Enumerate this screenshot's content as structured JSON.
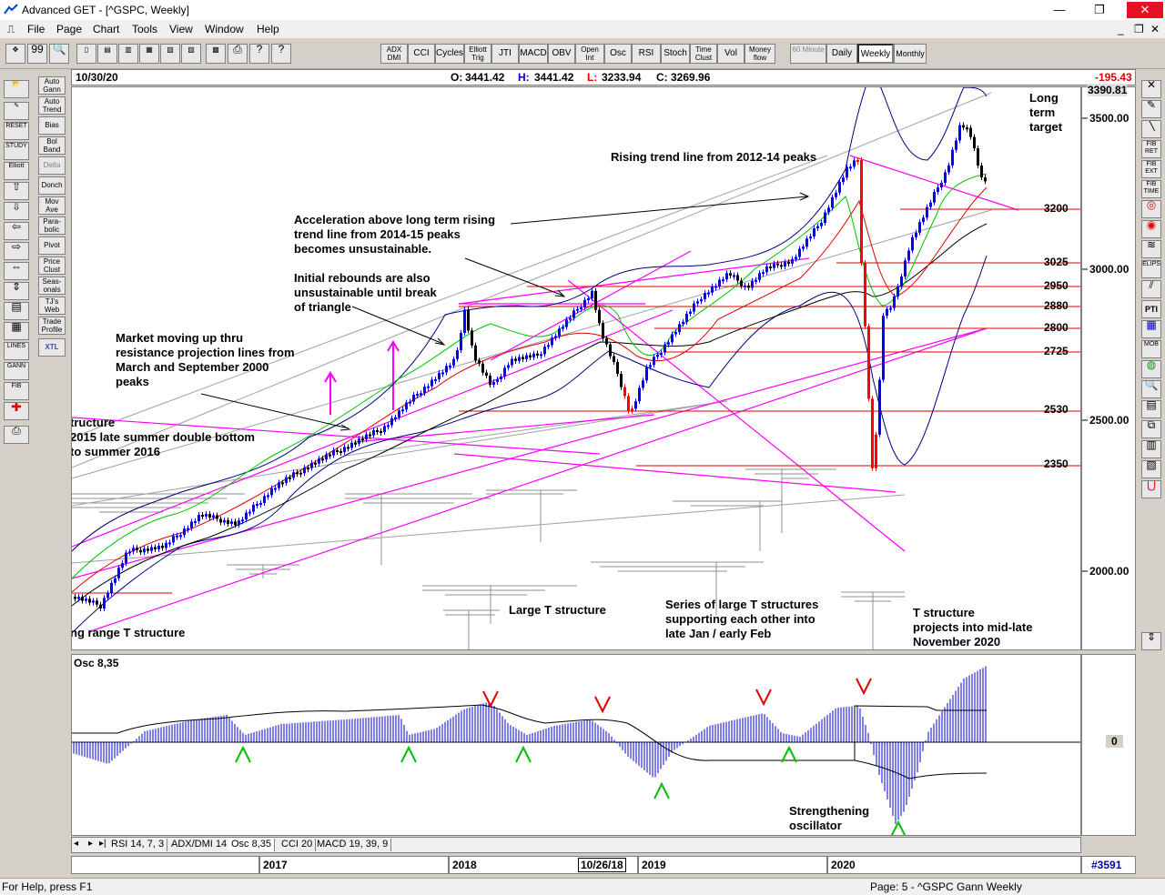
{
  "window": {
    "title": "Advanced GET - [^GSPC, Weekly]",
    "minimize": "—",
    "restore": "❐",
    "close": "✕"
  },
  "menu": [
    "File",
    "Page",
    "Chart",
    "Tools",
    "View",
    "Window",
    "Help"
  ],
  "mdi": {
    "minimize": "_",
    "restore": "❐",
    "close": "✕"
  },
  "toolbar_indicators": [
    "ADX DMI",
    "CCI",
    "Cycles",
    "Elliott Trig",
    "JTI",
    "MACD",
    "OBV",
    "Open Int",
    "Osc",
    "RSI",
    "Stoch",
    "Time Clust",
    "Vol",
    "Money flow"
  ],
  "toolbar_periods": [
    "60 Minute",
    "Daily",
    "Weekly",
    "Monthly"
  ],
  "left_tools": [
    "Auto Gann",
    "Auto Trend",
    "Bias",
    "Bol Band",
    "Delta",
    "Donch",
    "Mov Ave",
    "Para-bolic",
    "Pivot",
    "Price Clust",
    "Seas-onals",
    "TJ's Web",
    "Trade Profile",
    "XTL"
  ],
  "left_tools_icons": [
    "RESET",
    "STUDY",
    "Elliott",
    "LINES",
    "GANN",
    "FIB"
  ],
  "right_tools": [
    "FIB RET",
    "FIB EXT",
    "FIB TIME",
    "ELIPS",
    "PTI",
    "MOB"
  ],
  "info": {
    "date": "10/30/20",
    "open_label": "O:",
    "open": "3441.42",
    "high_label": "H:",
    "high": "3441.42",
    "low_label": "L:",
    "low": "3233.94",
    "close_label": "C:",
    "close": "3269.96",
    "change": "-195.43"
  },
  "price_scale": {
    "top_value": "3390.81",
    "ticks": [
      "3500.00",
      "3000.00",
      "2500.00",
      "2000.00"
    ]
  },
  "levels": [
    "3200",
    "3025",
    "2950",
    "2880",
    "2800",
    "2725",
    "2530",
    "2350"
  ],
  "annotations": {
    "long_term_target": [
      "Long",
      "term",
      "target"
    ],
    "rising_trend": "Rising trend line from 2012-14 peaks",
    "acceleration": [
      "Acceleration above long term rising",
      "trend line from 2014-15 peaks",
      "becomes unsustainable."
    ],
    "initial_rebounds": [
      "Initial rebounds are also",
      "unsustainable until break",
      "of triangle"
    ],
    "market_moving": [
      "Market moving up thru",
      "resistance projection lines from",
      "March and September 2000",
      "peaks"
    ],
    "structure_2015": [
      "tructure",
      "2015 late summer double bottom",
      "to summer 2016"
    ],
    "long_range_t": "ng range T structure",
    "large_t": "Large T structure",
    "series_large_t": [
      "Series of large T structures",
      "supporting each other into",
      "late Jan / early Feb"
    ],
    "t_structure_projects": [
      "T structure",
      "projects into mid-late",
      "November 2020"
    ],
    "strengthening": [
      "Strengthening",
      "oscillator"
    ]
  },
  "osc": {
    "label": "Osc 8,35",
    "zero": "0"
  },
  "tabs": [
    "RSI 14, 7, 3",
    "ADX/DMI 14",
    "Osc 8,35",
    "CCI 20",
    "MACD 19, 39, 9"
  ],
  "dates": {
    "y2017": "2017",
    "y2018": "2018",
    "cursor": "10/26/18",
    "y2019": "2019",
    "y2020": "2020",
    "bar_count": "#3591"
  },
  "status": {
    "help": "For Help, press F1",
    "page": "Page: 5 - ^GSPC Gann Weekly"
  },
  "colors": {
    "up_candle": "#0000ff",
    "down_candle": "#000000",
    "red_candle": "#ff0000",
    "magenta_lines": "#ff00ff",
    "level_lines": "#e00000",
    "osc_bars": "#0000cc",
    "arrow_down": "#ff0000",
    "arrow_up": "#00cc00"
  }
}
